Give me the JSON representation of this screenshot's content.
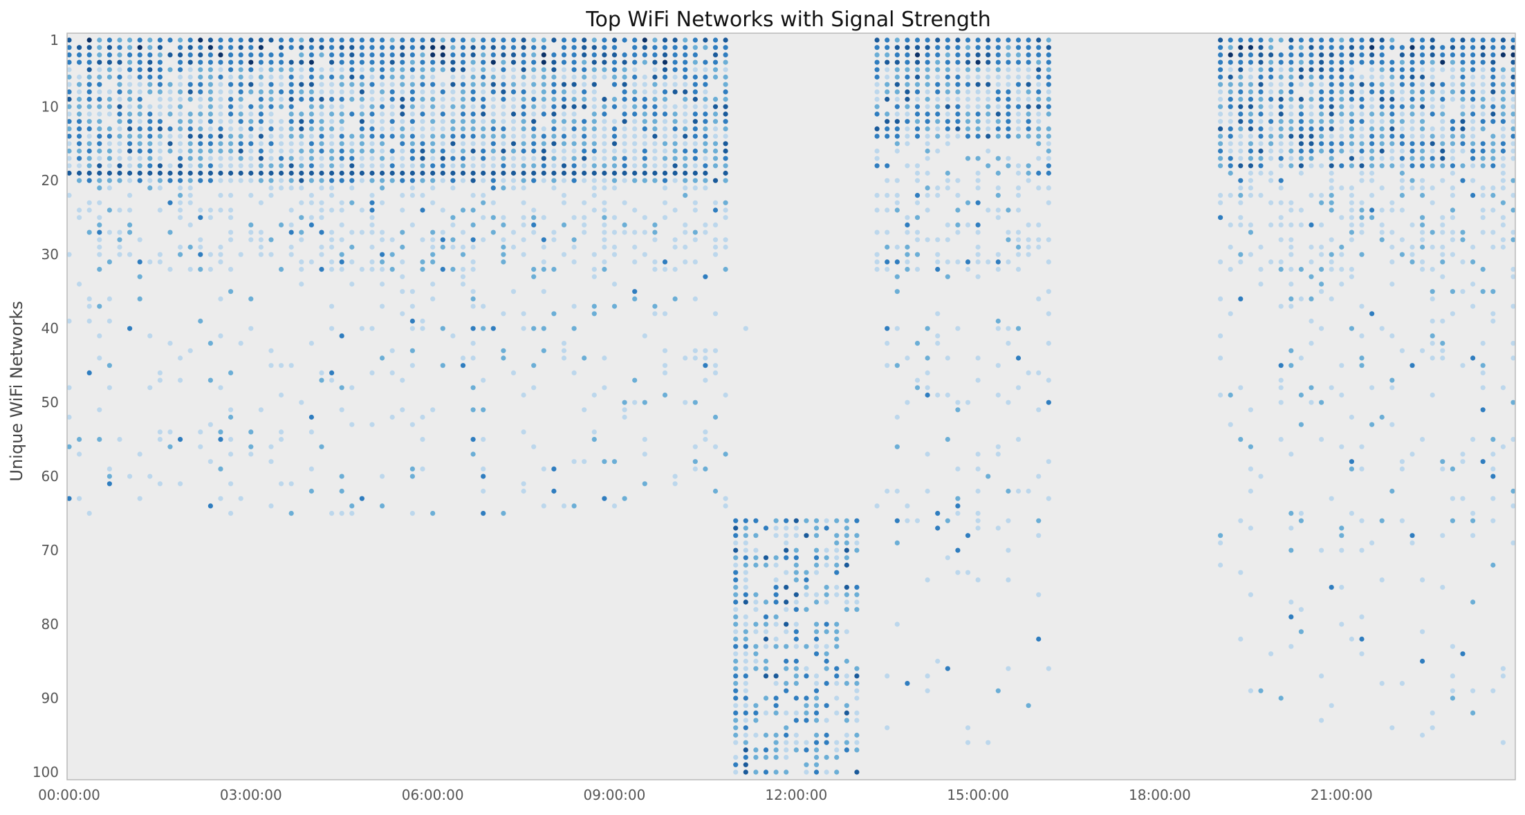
{
  "chart_data": {
    "type": "scatter",
    "title": "Top WiFi Networks with Signal Strength",
    "xlabel": "",
    "ylabel": "Unique WiFi Networks",
    "xlim": [
      "00:00:00",
      "23:50:00"
    ],
    "ylim": [
      1,
      100
    ],
    "y_inverted": true,
    "x_ticks": [
      "00:00:00",
      "03:00:00",
      "06:00:00",
      "09:00:00",
      "12:00:00",
      "15:00:00",
      "18:00:00",
      "21:00:00"
    ],
    "y_ticks": [
      1,
      10,
      20,
      30,
      40,
      50,
      60,
      70,
      80,
      90,
      100
    ],
    "grid": false,
    "legend": "none",
    "colors": {
      "background": "#ececec",
      "very_weak": "#bcd7ec",
      "weak": "#6baed6",
      "medium": "#2f7dbf",
      "strong": "#1a5a9a",
      "very_strong": "#0b3167"
    },
    "sample_interval_minutes": 10,
    "sessions": [
      {
        "start": "00:00:00",
        "end": "10:50:00",
        "networks": [
          1,
          65
        ],
        "strong_networks": [
          1,
          20
        ]
      },
      {
        "start": "11:00:00",
        "end": "11:10:00",
        "networks": [
          1,
          100
        ],
        "strong_networks": [
          66,
          100
        ]
      },
      {
        "start": "11:20:00",
        "end": "13:00:00",
        "networks": [
          66,
          100
        ],
        "strong_networks": [
          66,
          100
        ]
      },
      {
        "start": "13:20:00",
        "end": "16:10:00",
        "networks": [
          1,
          96
        ],
        "strong_networks": [
          1,
          14
        ]
      },
      {
        "start": "19:00:00",
        "end": "23:50:00",
        "networks": [
          1,
          96
        ],
        "strong_networks": [
          1,
          18
        ]
      }
    ]
  }
}
